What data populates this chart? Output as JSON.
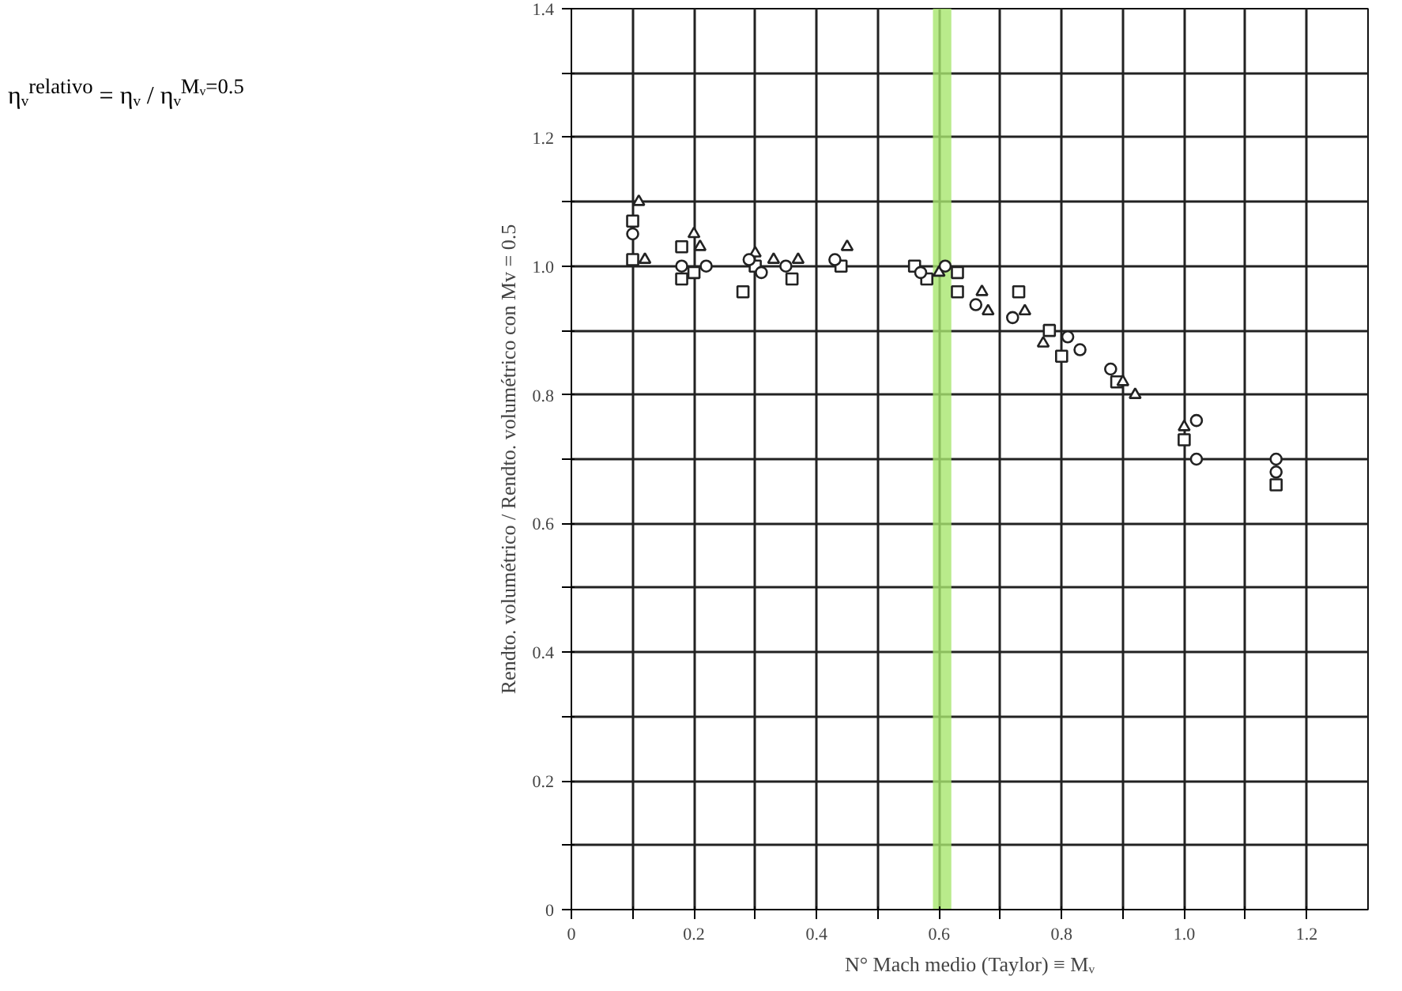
{
  "chart_data": {
    "type": "scatter",
    "xlabel": "N° Mach medio (Taylor) ≡ Mᵥ",
    "ylabel": "Rendto. volumétrico / Rendto. volumétrico con Mv = 0.5",
    "annotations": [
      "ηᵥ$^{relativo}$ = ηᵥ / ηᵥ$^{Mᵥ=0.5}$"
    ],
    "xlim": [
      0,
      1.3
    ],
    "ylim": [
      0,
      1.4
    ],
    "xticks": [
      0,
      {
        "value": 0.1,
        "label": null
      },
      0.2,
      {
        "value": 0.3,
        "label": null
      },
      0.4,
      {
        "value": 0.5,
        "label": null
      },
      0.6,
      {
        "value": 0.7,
        "label": null
      },
      0.8,
      {
        "value": 0.9,
        "label": null
      },
      {
        "value": 1.0,
        "label": "1.0"
      },
      {
        "value": 1.1,
        "label": null
      },
      1.2
    ],
    "yticks": [
      0,
      {
        "value": 0.1,
        "label": null
      },
      0.2,
      {
        "value": 0.3,
        "label": null
      },
      0.4,
      {
        "value": 0.5,
        "label": null
      },
      0.6,
      {
        "value": 0.7,
        "label": null
      },
      0.8,
      {
        "value": 0.9,
        "label": null
      },
      {
        "value": 1.0,
        "label": "1.0"
      },
      {
        "value": 1.1,
        "label": null
      },
      1.2,
      {
        "value": 1.3,
        "label": null
      },
      1.4
    ],
    "grid": true,
    "bands": [
      {
        "axis": "x",
        "from": 0.59,
        "to": 0.62,
        "color": "#a8e66e"
      }
    ],
    "series": [
      {
        "color": "#222222",
        "marker": "square",
        "x": [
          0.1,
          0.1,
          0.18,
          0.18,
          0.2,
          0.28,
          0.3,
          0.36,
          0.44,
          0.56,
          0.58,
          0.63,
          0.63,
          0.73,
          0.78,
          0.8,
          0.89,
          1.0,
          1.15
        ],
        "values": [
          1.07,
          1.01,
          1.03,
          0.98,
          0.99,
          0.96,
          1.0,
          0.98,
          1.0,
          1.0,
          0.98,
          0.99,
          0.96,
          0.96,
          0.9,
          0.86,
          0.82,
          0.73,
          0.66
        ]
      },
      {
        "color": "#222222",
        "marker": "triangle",
        "x": [
          0.11,
          0.12,
          0.2,
          0.21,
          0.3,
          0.33,
          0.37,
          0.45,
          0.6,
          0.67,
          0.68,
          0.74,
          0.77,
          0.9,
          0.92,
          1.0
        ],
        "values": [
          1.1,
          1.01,
          1.05,
          1.03,
          1.02,
          1.01,
          1.01,
          1.03,
          0.99,
          0.96,
          0.93,
          0.93,
          0.88,
          0.82,
          0.8,
          0.75
        ]
      },
      {
        "color": "#222222",
        "marker": "circle",
        "x": [
          0.1,
          0.18,
          0.22,
          0.29,
          0.31,
          0.35,
          0.43,
          0.57,
          0.61,
          0.66,
          0.72,
          0.83,
          0.81,
          0.88,
          1.02,
          1.02,
          1.15,
          1.15
        ],
        "values": [
          1.05,
          1.0,
          1.0,
          1.01,
          0.99,
          1.0,
          1.01,
          0.99,
          1.0,
          0.94,
          0.92,
          0.87,
          0.89,
          0.84,
          0.7,
          0.76,
          0.7,
          0.68
        ]
      }
    ]
  }
}
